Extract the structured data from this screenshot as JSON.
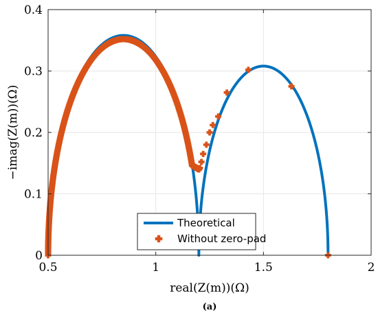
{
  "chart_data": {
    "type": "line",
    "xlabel": "real(Z(m))(Ω)",
    "ylabel": "−imag(Z(m))(Ω)",
    "xlim": [
      0.5,
      2
    ],
    "ylim": [
      0,
      0.4
    ],
    "xticks": [
      "0.5",
      "1",
      "1.5",
      "2"
    ],
    "xtick_values": [
      0.5,
      1,
      1.5,
      2
    ],
    "yticks": [
      "0",
      "0.1",
      "0.2",
      "0.3",
      "0.4"
    ],
    "ytick_values": [
      0,
      0.1,
      0.2,
      0.3,
      0.4
    ],
    "grid": true,
    "legend_position": "bottom-center",
    "series": [
      {
        "name": "Theoretical",
        "style": "line",
        "color": "#0072BD",
        "arcs": [
          {
            "x_start": 0.5,
            "x_end": 1.2,
            "y_peak": 0.358
          },
          {
            "x_start": 1.2,
            "x_end": 1.8,
            "y_peak": 0.308
          }
        ]
      },
      {
        "name": "Without zero-pad",
        "style": "markers",
        "color": "#D95319",
        "marker": "filled-cross",
        "sparse_points": [
          [
            1.22,
            0.165
          ],
          [
            1.235,
            0.18
          ],
          [
            1.25,
            0.2
          ],
          [
            1.265,
            0.212
          ],
          [
            1.29,
            0.226
          ],
          [
            1.33,
            0.265
          ],
          [
            1.43,
            0.302
          ],
          [
            1.63,
            0.275
          ],
          [
            1.8,
            0.0
          ]
        ]
      }
    ],
    "caption": "(a)"
  }
}
